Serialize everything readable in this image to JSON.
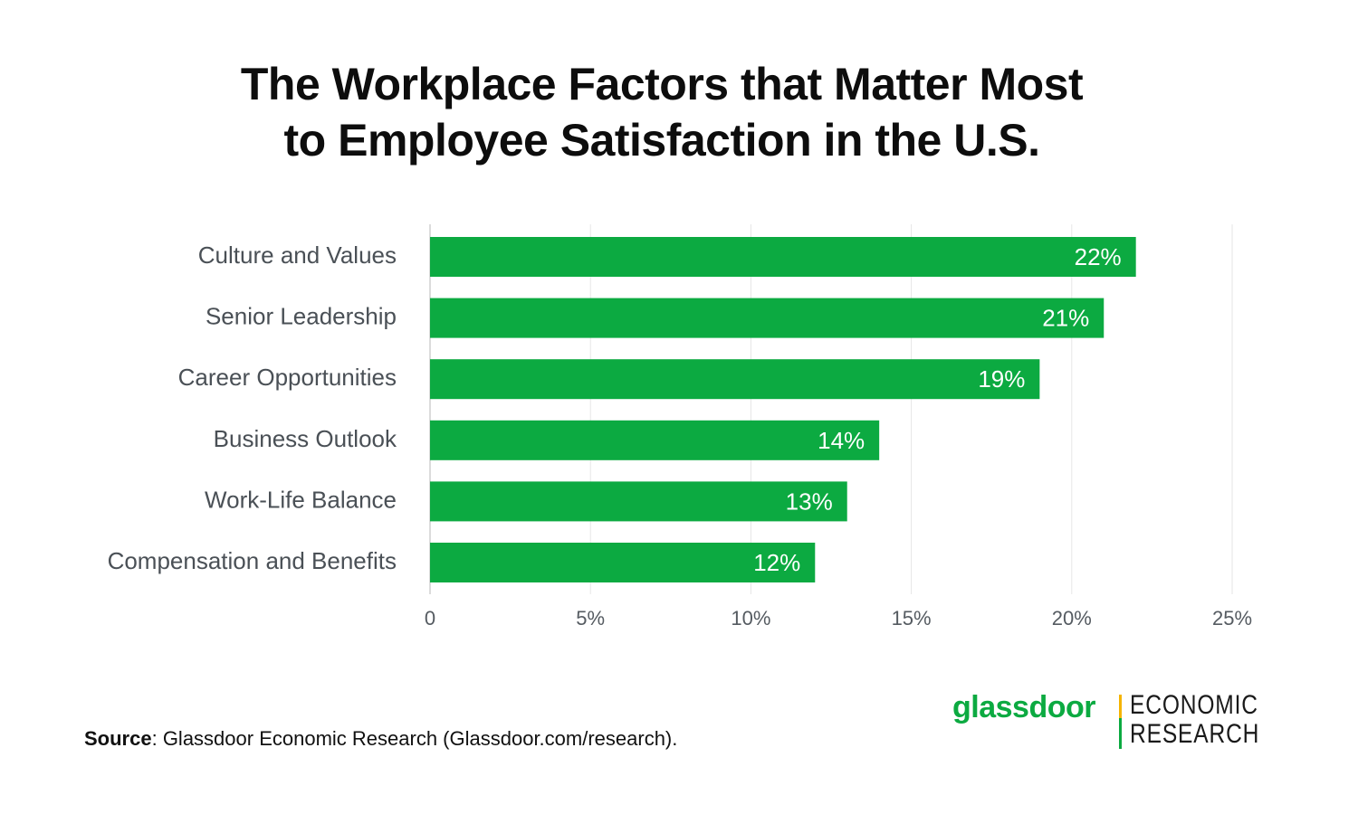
{
  "title_line1": "The Workplace Factors that Matter Most",
  "title_line2": "to Employee Satisfaction in the U.S.",
  "source_label": "Source",
  "source_text": ": Glassdoor Economic Research (Glassdoor.com/research).",
  "logo": {
    "wordmark": "glassdoor",
    "line1": "ECONOMIC",
    "line2": "RESEARCH",
    "brand_green": "#0caa41",
    "accent_yellow": "#f5b400"
  },
  "colors": {
    "bar": "#0caa41",
    "grid": "#e6e6e6",
    "axis_text": "#555b61",
    "category_text": "#4a5056",
    "bar_label": "#ffffff"
  },
  "chart_data": {
    "type": "bar",
    "orientation": "horizontal",
    "categories": [
      "Culture and Values",
      "Senior Leadership",
      "Career Opportunities",
      "Business Outlook",
      "Work-Life Balance",
      "Compensation and Benefits"
    ],
    "values": [
      22,
      21,
      19,
      14,
      13,
      12
    ],
    "data_labels": [
      "22%",
      "21%",
      "19%",
      "14%",
      "13%",
      "12%"
    ],
    "xlim": [
      0,
      25
    ],
    "x_ticks": [
      0,
      5,
      10,
      15,
      20,
      25
    ],
    "x_tick_labels": [
      "0",
      "5%",
      "10%",
      "15%",
      "20%",
      "25%"
    ],
    "grid": true
  }
}
